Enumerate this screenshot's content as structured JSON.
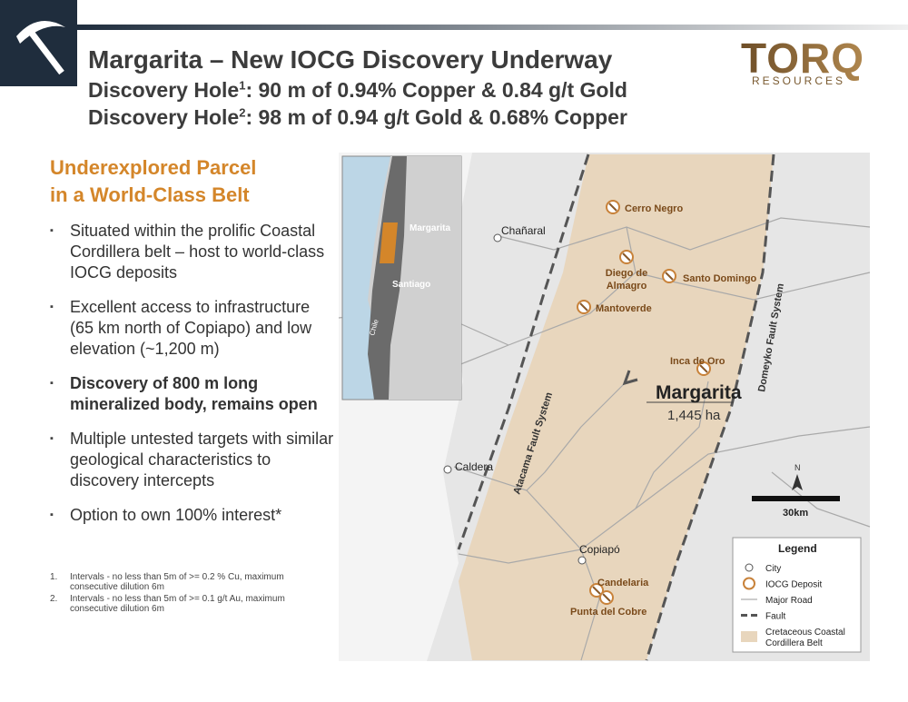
{
  "header": {
    "title": "Margarita – New IOCG Discovery Underway",
    "subtitles": [
      {
        "text": "Discovery Hole",
        "sup": "1",
        "rest": ": 90 m of 0.94% Copper & 0.84 g/t Gold"
      },
      {
        "text": "Discovery Hole",
        "sup": "2",
        "rest": ": 98 m of 0.94 g/t Gold & 0.68% Copper"
      }
    ],
    "logo": {
      "name": "TORQ",
      "tagline": "RESOURCES"
    }
  },
  "section_title": [
    "Underexplored Parcel",
    "in a World-Class Belt"
  ],
  "bullets": [
    {
      "text": "Situated within the prolific Coastal Cordillera belt – host to world-class IOCG deposits",
      "bold": false
    },
    {
      "text": "Excellent access to infrastructure (65 km north of Copiapo) and low elevation (~1,200 m)",
      "bold": false
    },
    {
      "text": "Discovery of 800 m long mineralized body, remains open",
      "bold": true
    },
    {
      "text": "Multiple untested targets with similar geological characteristics to discovery intercepts",
      "bold": false
    },
    {
      "text": "Option to own 100% interest*",
      "bold": false
    }
  ],
  "footnotes": [
    {
      "number": "1.",
      "text": "Intervals - no less than 5m of >= 0.2 % Cu, maximum consecutive dilution 6m"
    },
    {
      "number": "2.",
      "text": "Intervals - no less than 5m of >= 0.1 g/t Au, maximum consecutive dilution 6m"
    }
  ],
  "map": {
    "inset": {
      "project": "Margarita",
      "city": "Santiago",
      "country": "Chile"
    },
    "cities": [
      "Chañaral",
      "Caldera",
      "Copiapó"
    ],
    "deposits": [
      {
        "name": [
          "Cerro Negro"
        ]
      },
      {
        "name": [
          "Diego de",
          "Almagro"
        ]
      },
      {
        "name": [
          "Santo Domingo"
        ]
      },
      {
        "name": [
          "Mantoverde"
        ]
      },
      {
        "name": [
          "Inca de Oro"
        ]
      },
      {
        "name": [
          "Candelaria"
        ]
      },
      {
        "name": [
          "Punta del Cobre"
        ]
      }
    ],
    "faults": [
      "Atacama Fault System",
      "Domeyko Fault System"
    ],
    "project": {
      "name": "Margarita",
      "area": "1,445 ha"
    },
    "north": "N",
    "scale": "30km",
    "legend": {
      "title": "Legend",
      "items": [
        {
          "label": [
            "City"
          ]
        },
        {
          "label": [
            "IOCG Deposit"
          ]
        },
        {
          "label": [
            "Major Road"
          ]
        },
        {
          "label": [
            "Fault"
          ]
        },
        {
          "label": [
            "Cretaceous Coastal",
            "Cordillera Belt"
          ]
        }
      ]
    }
  }
}
